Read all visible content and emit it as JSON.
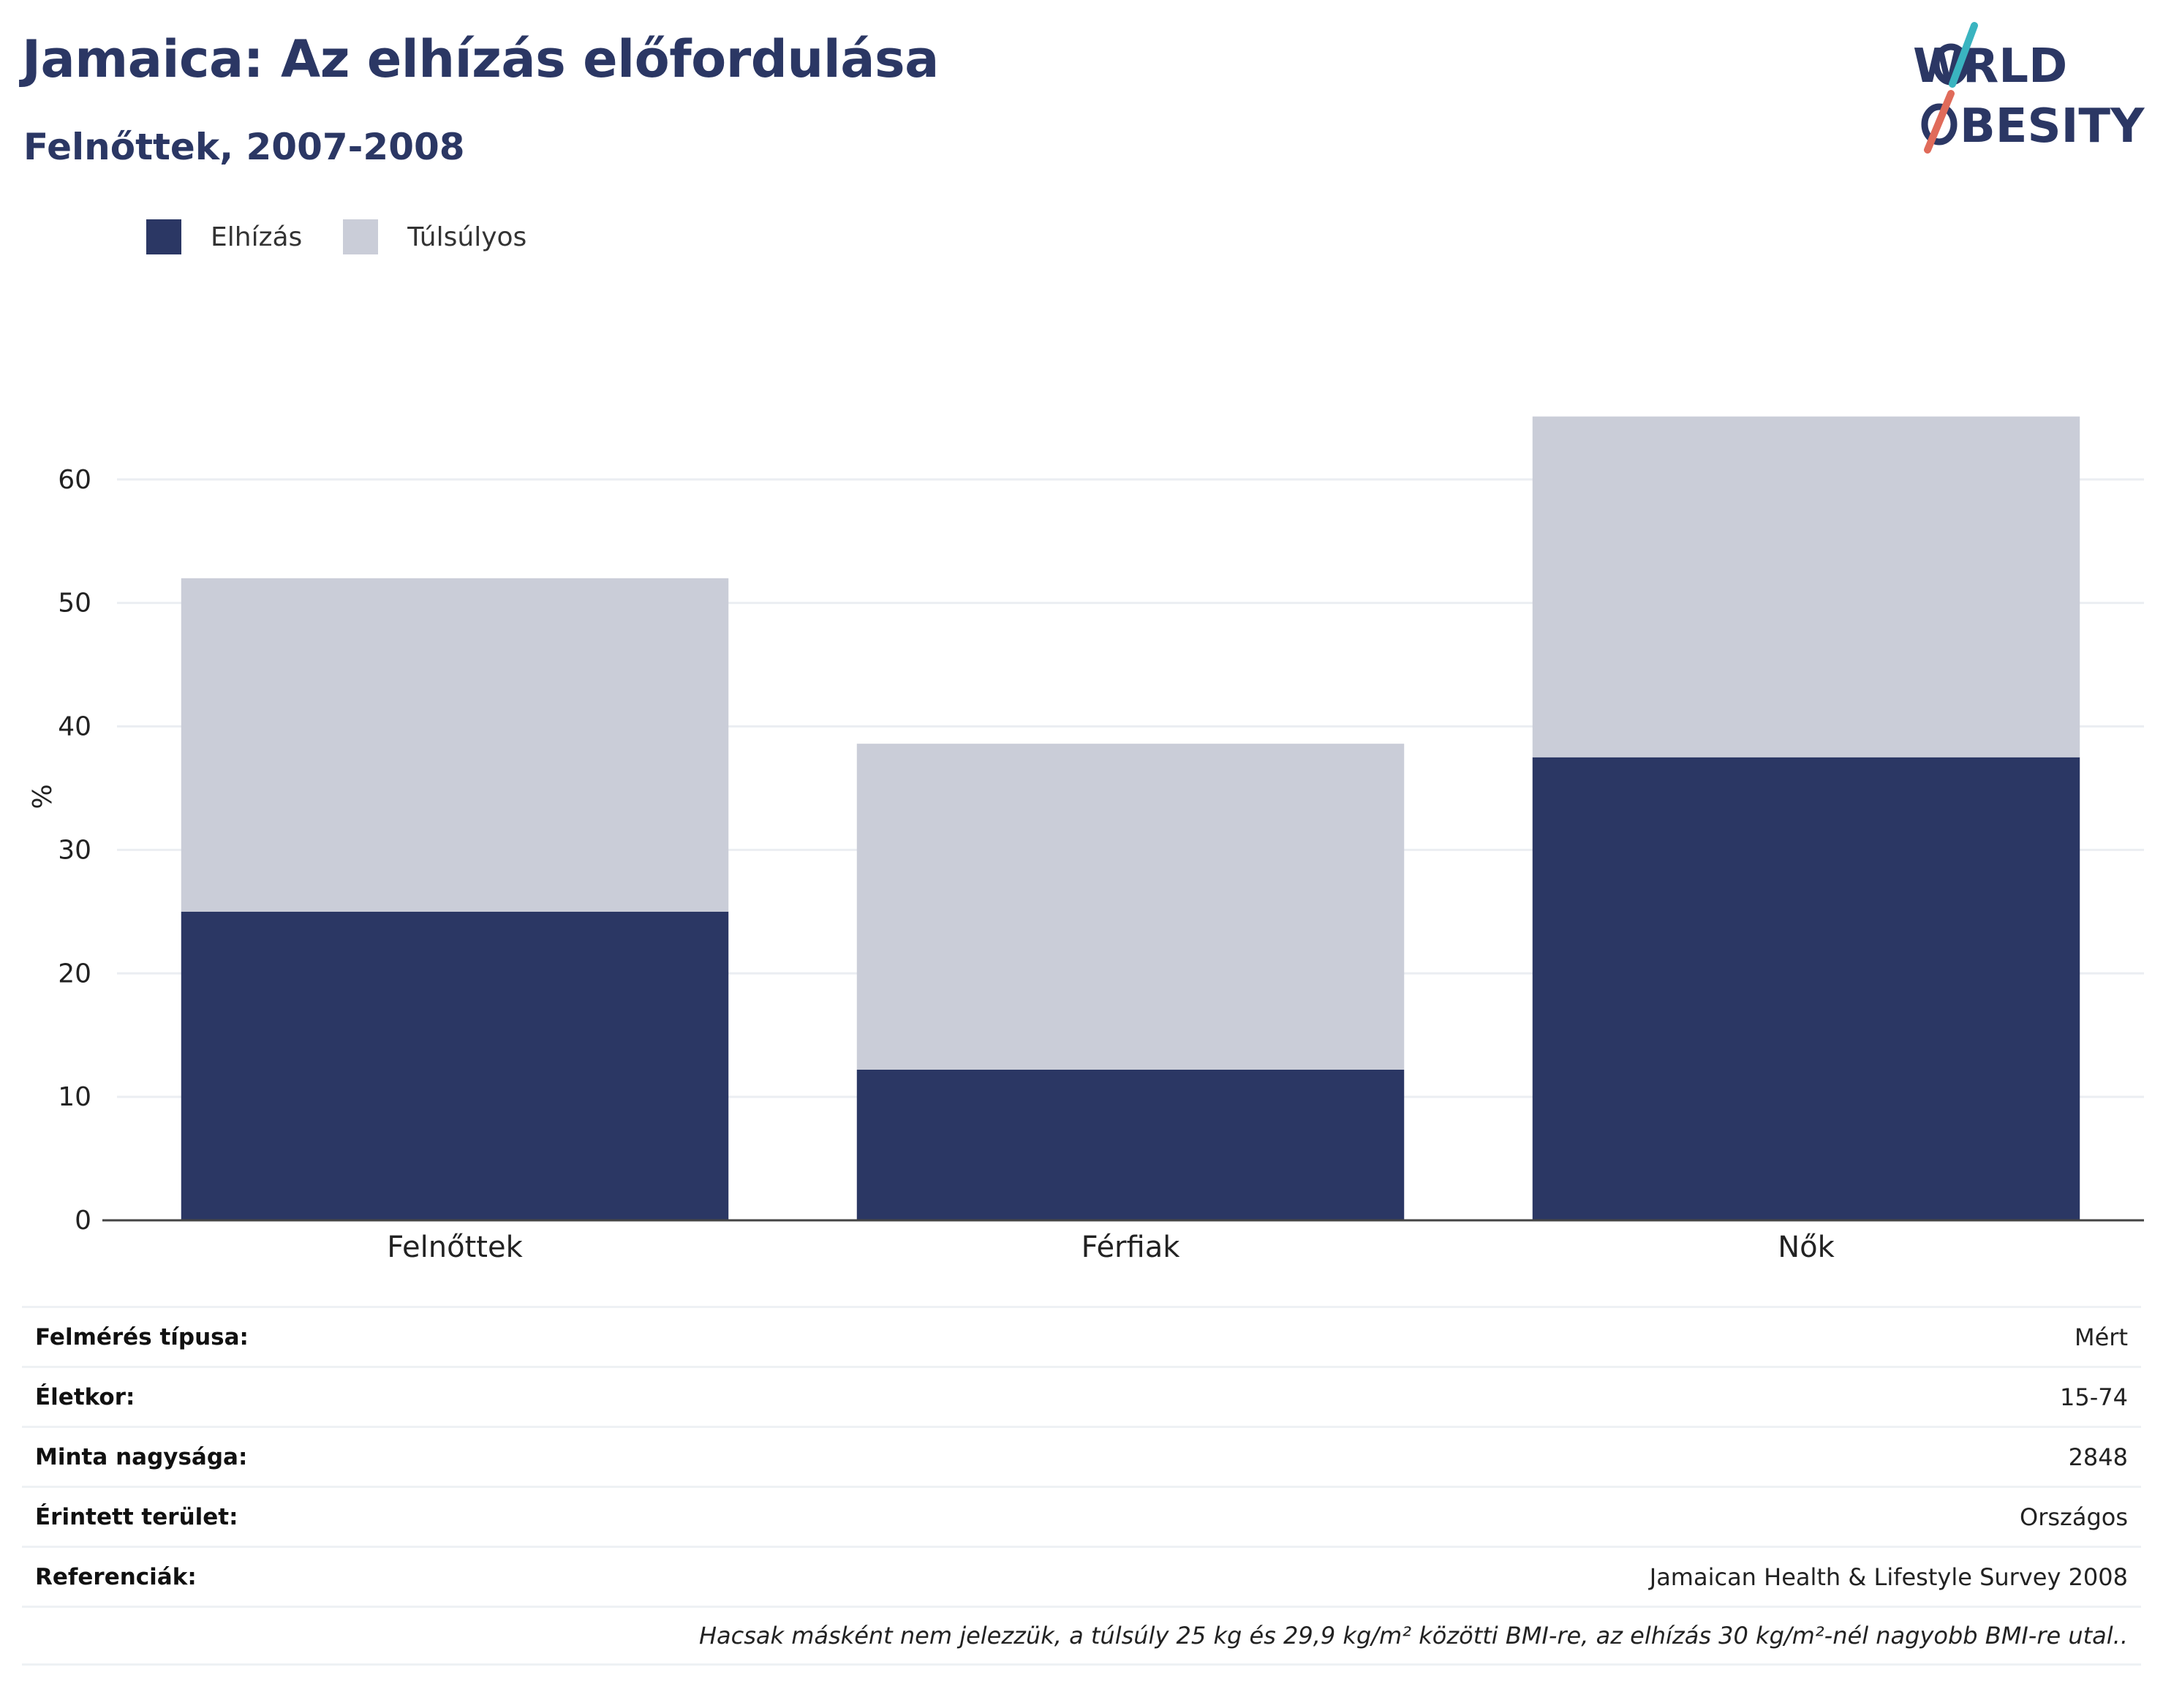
{
  "header": {
    "title": "Jamaica: Az elhízás előfordulása",
    "subtitle": "Felnőttek, 2007-2008"
  },
  "logo": {
    "line1": "WORLD",
    "line2": "OBESITY",
    "colors": {
      "text": "#2b3764",
      "slash_top": "#3ab4c0",
      "slash_bottom": "#e06b5a"
    }
  },
  "chart_data": {
    "type": "bar",
    "stacked": true,
    "categories": [
      "Felnőttek",
      "Férfiak",
      "Nők"
    ],
    "series": [
      {
        "name": "Elhízás",
        "color": "#2b3764",
        "values": [
          25,
          12.2,
          37.5
        ]
      },
      {
        "name": "Túlsúlyos",
        "color": "#cacdd8",
        "values": [
          27,
          26.4,
          27.6
        ]
      }
    ],
    "ylabel": "%",
    "ylim": [
      0,
      71
    ],
    "yticks": [
      0,
      10,
      20,
      30,
      40,
      50,
      60
    ],
    "grid": true,
    "legend_position": "top-left"
  },
  "info_table": {
    "rows": [
      {
        "label": "Felmérés típusa:",
        "value": "Mért"
      },
      {
        "label": "Életkor:",
        "value": "15-74"
      },
      {
        "label": "Minta nagysága:",
        "value": "2848"
      },
      {
        "label": "Érintett terület:",
        "value": "Országos"
      },
      {
        "label": "Referenciák:",
        "value": "Jamaican Health & Lifestyle Survey 2008"
      }
    ],
    "note": "Hacsak másként nem jelezzük, a túlsúly 25 kg és 29,9 kg/m² közötti BMI-re, az elhízás 30 kg/m²-nél nagyobb BMI-re utal.."
  }
}
